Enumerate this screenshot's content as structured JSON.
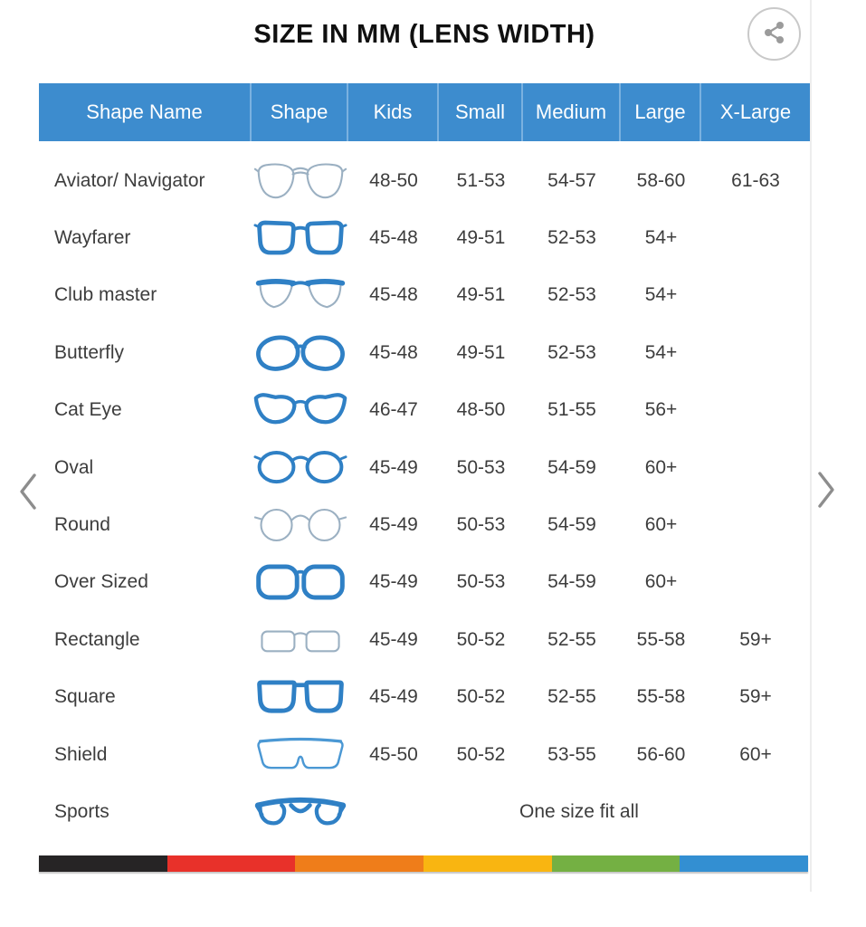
{
  "title": "SIZE IN MM (LENS WIDTH)",
  "icons": {
    "share": "share-icon",
    "prev": "chevron-left-icon",
    "next": "chevron-right-icon"
  },
  "colors": {
    "header_bg": "#3d8cce",
    "header_divider": "#7ab1e0",
    "header_text": "#ffffff",
    "frame_blue": "#2f80c5",
    "frame_light": "#9bb0c2",
    "footer_segments": [
      "#262425",
      "#e8312a",
      "#ef7d1a",
      "#f9b511",
      "#74b043",
      "#338fd2"
    ]
  },
  "table": {
    "headers": [
      "Shape Name",
      "Shape",
      "Kids",
      "Small",
      "Medium",
      "Large",
      "X-Large"
    ],
    "rows": [
      {
        "name": "Aviator/ Navigator",
        "icon": "aviator-glasses-icon",
        "sizes": [
          "48-50",
          "51-53",
          "54-57",
          "58-60",
          "61-63"
        ]
      },
      {
        "name": "Wayfarer",
        "icon": "wayfarer-glasses-icon",
        "sizes": [
          "45-48",
          "49-51",
          "52-53",
          "54+",
          ""
        ]
      },
      {
        "name": "Club master",
        "icon": "clubmaster-glasses-icon",
        "sizes": [
          "45-48",
          "49-51",
          "52-53",
          "54+",
          ""
        ]
      },
      {
        "name": "Butterfly",
        "icon": "butterfly-glasses-icon",
        "sizes": [
          "45-48",
          "49-51",
          "52-53",
          "54+",
          ""
        ]
      },
      {
        "name": "Cat Eye",
        "icon": "cateye-glasses-icon",
        "sizes": [
          "46-47",
          "48-50",
          "51-55",
          "56+",
          ""
        ]
      },
      {
        "name": "Oval",
        "icon": "oval-glasses-icon",
        "sizes": [
          "45-49",
          "50-53",
          "54-59",
          "60+",
          ""
        ]
      },
      {
        "name": "Round",
        "icon": "round-glasses-icon",
        "sizes": [
          "45-49",
          "50-53",
          "54-59",
          "60+",
          ""
        ]
      },
      {
        "name": "Over Sized",
        "icon": "oversized-glasses-icon",
        "sizes": [
          "45-49",
          "50-53",
          "54-59",
          "60+",
          ""
        ]
      },
      {
        "name": "Rectangle",
        "icon": "rectangle-glasses-icon",
        "sizes": [
          "45-49",
          "50-52",
          "52-55",
          "55-58",
          "59+"
        ]
      },
      {
        "name": "Square",
        "icon": "square-glasses-icon",
        "sizes": [
          "45-49",
          "50-52",
          "52-55",
          "55-58",
          "59+"
        ]
      },
      {
        "name": "Shield",
        "icon": "shield-glasses-icon",
        "sizes": [
          "45-50",
          "50-52",
          "53-55",
          "56-60",
          "60+"
        ]
      },
      {
        "name": "Sports",
        "icon": "sports-glasses-icon",
        "note": "One size fit all",
        "sizes": []
      }
    ]
  }
}
